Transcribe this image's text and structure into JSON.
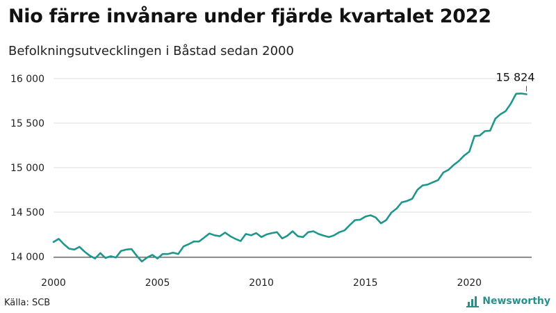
{
  "title": "Nio färre invånare under fjärde kvartalet 2022",
  "subtitle": "Befolkningsutvecklingen i Båstad sedan 2000",
  "source": "Källa: SCB",
  "brand": {
    "name": "Newsworthy",
    "icon": "bar-chart-icon",
    "color": "#2a8f8a"
  },
  "chart_data": {
    "type": "line",
    "line_color": "#1f968b",
    "grid": true,
    "xlim": [
      2000,
      2023
    ],
    "ylim": [
      14000,
      16000
    ],
    "x_ticks": [
      {
        "value": 2000,
        "label": "2000"
      },
      {
        "value": 2005,
        "label": "2005"
      },
      {
        "value": 2010,
        "label": "2010"
      },
      {
        "value": 2015,
        "label": "2015"
      },
      {
        "value": 2020,
        "label": "2020"
      }
    ],
    "y_ticks": [
      {
        "value": 14000,
        "label": "14 000"
      },
      {
        "value": 14500,
        "label": "14 500"
      },
      {
        "value": 15000,
        "label": "15 000"
      },
      {
        "value": 15500,
        "label": "15 500"
      },
      {
        "value": 16000,
        "label": "16 000"
      }
    ],
    "annotation": {
      "x": 2022.75,
      "y": 15824,
      "label": "15 824"
    },
    "series": [
      {
        "points": [
          [
            2000.0,
            14165
          ],
          [
            2000.25,
            14200
          ],
          [
            2000.5,
            14140
          ],
          [
            2000.75,
            14090
          ],
          [
            2001.0,
            14080
          ],
          [
            2001.25,
            14110
          ],
          [
            2001.5,
            14055
          ],
          [
            2001.75,
            14010
          ],
          [
            2002.0,
            13980
          ],
          [
            2002.25,
            14040
          ],
          [
            2002.5,
            13985
          ],
          [
            2002.75,
            14005
          ],
          [
            2003.0,
            13990
          ],
          [
            2003.25,
            14065
          ],
          [
            2003.5,
            14080
          ],
          [
            2003.75,
            14085
          ],
          [
            2004.0,
            14010
          ],
          [
            2004.25,
            13945
          ],
          [
            2004.5,
            13990
          ],
          [
            2004.75,
            14020
          ],
          [
            2005.0,
            13980
          ],
          [
            2005.25,
            14030
          ],
          [
            2005.5,
            14030
          ],
          [
            2005.75,
            14045
          ],
          [
            2006.0,
            14030
          ],
          [
            2006.25,
            14115
          ],
          [
            2006.5,
            14140
          ],
          [
            2006.75,
            14170
          ],
          [
            2007.0,
            14170
          ],
          [
            2007.25,
            14215
          ],
          [
            2007.5,
            14260
          ],
          [
            2007.75,
            14240
          ],
          [
            2008.0,
            14230
          ],
          [
            2008.25,
            14270
          ],
          [
            2008.5,
            14230
          ],
          [
            2008.75,
            14200
          ],
          [
            2009.0,
            14175
          ],
          [
            2009.25,
            14255
          ],
          [
            2009.5,
            14240
          ],
          [
            2009.75,
            14265
          ],
          [
            2010.0,
            14220
          ],
          [
            2010.25,
            14250
          ],
          [
            2010.5,
            14265
          ],
          [
            2010.75,
            14275
          ],
          [
            2011.0,
            14205
          ],
          [
            2011.25,
            14235
          ],
          [
            2011.5,
            14285
          ],
          [
            2011.75,
            14230
          ],
          [
            2012.0,
            14220
          ],
          [
            2012.25,
            14275
          ],
          [
            2012.5,
            14285
          ],
          [
            2012.75,
            14255
          ],
          [
            2013.0,
            14235
          ],
          [
            2013.25,
            14220
          ],
          [
            2013.5,
            14240
          ],
          [
            2013.75,
            14275
          ],
          [
            2014.0,
            14295
          ],
          [
            2014.25,
            14355
          ],
          [
            2014.5,
            14410
          ],
          [
            2014.75,
            14415
          ],
          [
            2015.0,
            14450
          ],
          [
            2015.25,
            14465
          ],
          [
            2015.5,
            14440
          ],
          [
            2015.75,
            14375
          ],
          [
            2016.0,
            14410
          ],
          [
            2016.25,
            14495
          ],
          [
            2016.5,
            14540
          ],
          [
            2016.75,
            14610
          ],
          [
            2017.0,
            14625
          ],
          [
            2017.25,
            14650
          ],
          [
            2017.5,
            14750
          ],
          [
            2017.75,
            14800
          ],
          [
            2018.0,
            14810
          ],
          [
            2018.25,
            14835
          ],
          [
            2018.5,
            14860
          ],
          [
            2018.75,
            14945
          ],
          [
            2019.0,
            14975
          ],
          [
            2019.25,
            15030
          ],
          [
            2019.5,
            15075
          ],
          [
            2019.75,
            15135
          ],
          [
            2020.0,
            15180
          ],
          [
            2020.25,
            15355
          ],
          [
            2020.5,
            15360
          ],
          [
            2020.75,
            15410
          ],
          [
            2021.0,
            15415
          ],
          [
            2021.25,
            15550
          ],
          [
            2021.5,
            15600
          ],
          [
            2021.75,
            15635
          ],
          [
            2022.0,
            15720
          ],
          [
            2022.25,
            15830
          ],
          [
            2022.5,
            15833
          ],
          [
            2022.75,
            15824
          ]
        ]
      }
    ]
  }
}
